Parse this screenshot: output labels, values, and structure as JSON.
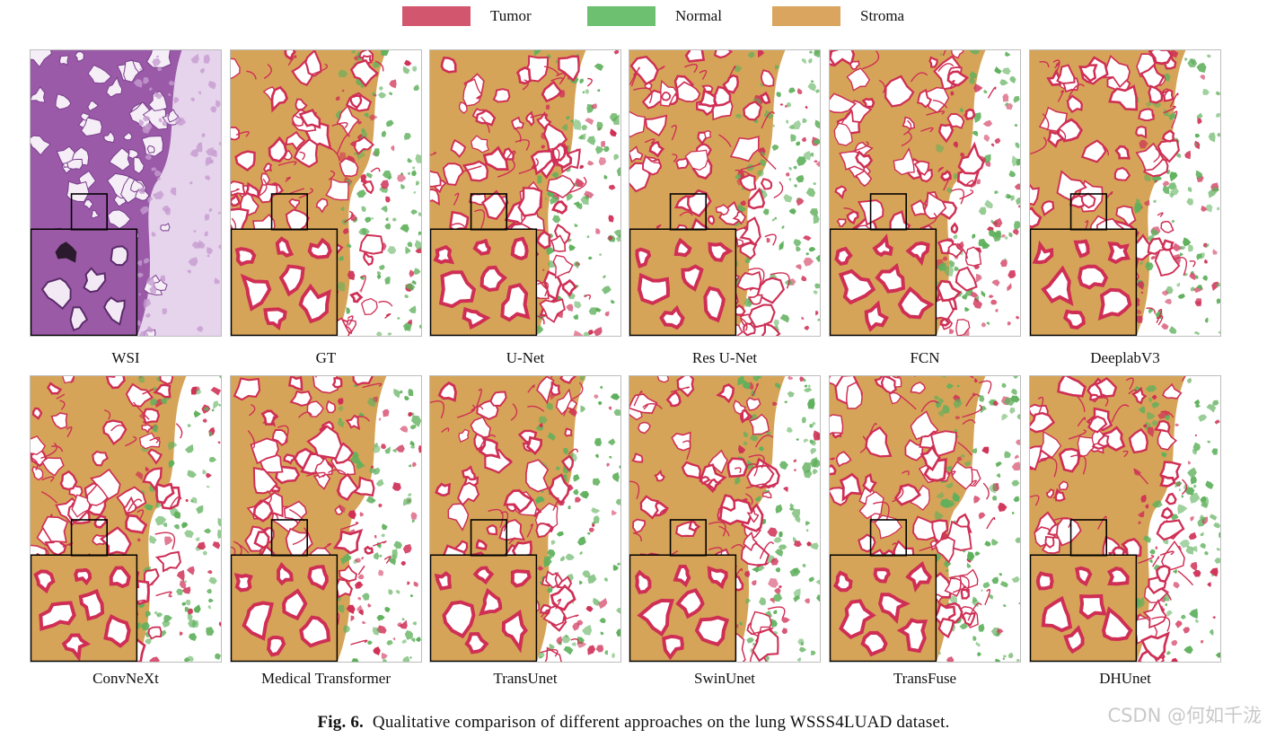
{
  "legend": [
    {
      "label": "Tumor",
      "color": "#d2566d"
    },
    {
      "label": "Normal",
      "color": "#6cc070"
    },
    {
      "label": "Stroma",
      "color": "#d9a55f"
    }
  ],
  "panels": [
    {
      "label": "WSI",
      "kind": "wsi"
    },
    {
      "label": "GT",
      "kind": "seg"
    },
    {
      "label": "U-Net",
      "kind": "seg"
    },
    {
      "label": "Res U-Net",
      "kind": "seg"
    },
    {
      "label": "FCN",
      "kind": "seg"
    },
    {
      "label": "DeeplabV3",
      "kind": "seg"
    },
    {
      "label": "ConvNeXt",
      "kind": "seg"
    },
    {
      "label": "Medical Transformer",
      "kind": "seg"
    },
    {
      "label": "TransUnet",
      "kind": "seg"
    },
    {
      "label": "SwinUnet",
      "kind": "seg"
    },
    {
      "label": "TransFuse",
      "kind": "seg"
    },
    {
      "label": "DHUnet",
      "kind": "seg"
    }
  ],
  "caption": {
    "prefix": "Fig. 6.",
    "text": "Qualitative comparison of different approaches on the lung WSSS4LUAD dataset."
  },
  "watermark": "CSDN @何如千泷",
  "colors": {
    "tumor": "#cf2f55",
    "normal": "#5fb05c",
    "stroma": "#d6a458",
    "wsi_base": "#9a5aa8",
    "wsi_light": "#e6d3ec"
  }
}
